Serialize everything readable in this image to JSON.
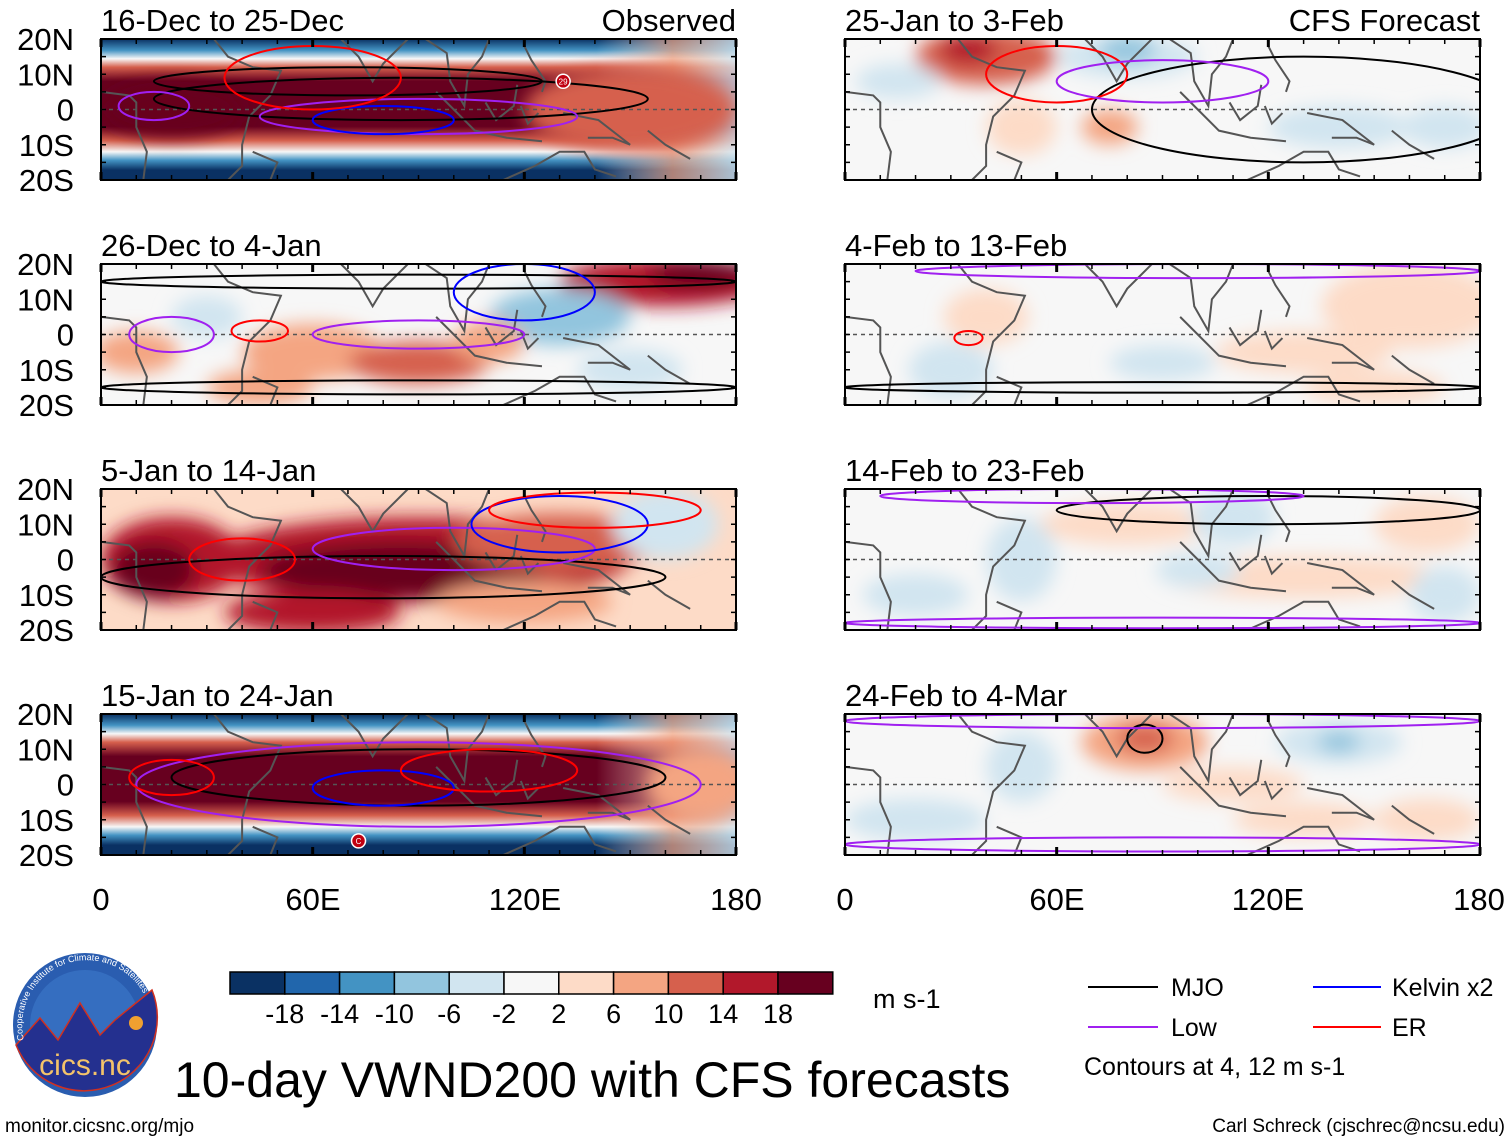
{
  "panels": [
    {
      "title": "16-Dec to 25-Dec",
      "tag": "Observed",
      "marker": "29"
    },
    {
      "title": "26-Dec to 4-Jan"
    },
    {
      "title": "5-Jan to 14-Jan"
    },
    {
      "title": "15-Jan to 24-Jan",
      "marker": "C"
    },
    {
      "title": "25-Jan to 3-Feb",
      "tag": "CFS Forecast"
    },
    {
      "title": "4-Feb to 13-Feb"
    },
    {
      "title": "14-Feb to 23-Feb"
    },
    {
      "title": "24-Feb to 4-Mar"
    }
  ],
  "lat_labels": [
    "20N",
    "10N",
    "0",
    "10S",
    "20S"
  ],
  "lon_labels": [
    "0",
    "60E",
    "120E",
    "180"
  ],
  "colorbar": {
    "colors": [
      "#0a3163",
      "#2166ac",
      "#4393c3",
      "#92c5de",
      "#d1e5f0",
      "#f7f7f7",
      "#fddbc7",
      "#f4a582",
      "#d6604d",
      "#b2182b",
      "#67001f"
    ],
    "labels": [
      "-18",
      "-14",
      "-10",
      "-6",
      "-2",
      "2",
      "6",
      "10",
      "14",
      "18"
    ],
    "units": "m s-1"
  },
  "legend": {
    "items": [
      {
        "label": "MJO",
        "color": "#000000"
      },
      {
        "label": "Kelvin x2",
        "color": "#0000ff"
      },
      {
        "label": "Low",
        "color": "#a020f0"
      },
      {
        "label": "ER",
        "color": "#ff0000"
      }
    ],
    "note": "Contours at 4, 12 m s-1"
  },
  "title": "10-day VWND200 with CFS forecasts",
  "logo": {
    "text": "cics.nc",
    "ring": "Cooperative Institute for Climate and Satellites"
  },
  "footer_left": "monitor.cicsnc.org/mjo",
  "footer_right": "Carl Schreck (cjschrec@ncsu.edu)"
}
